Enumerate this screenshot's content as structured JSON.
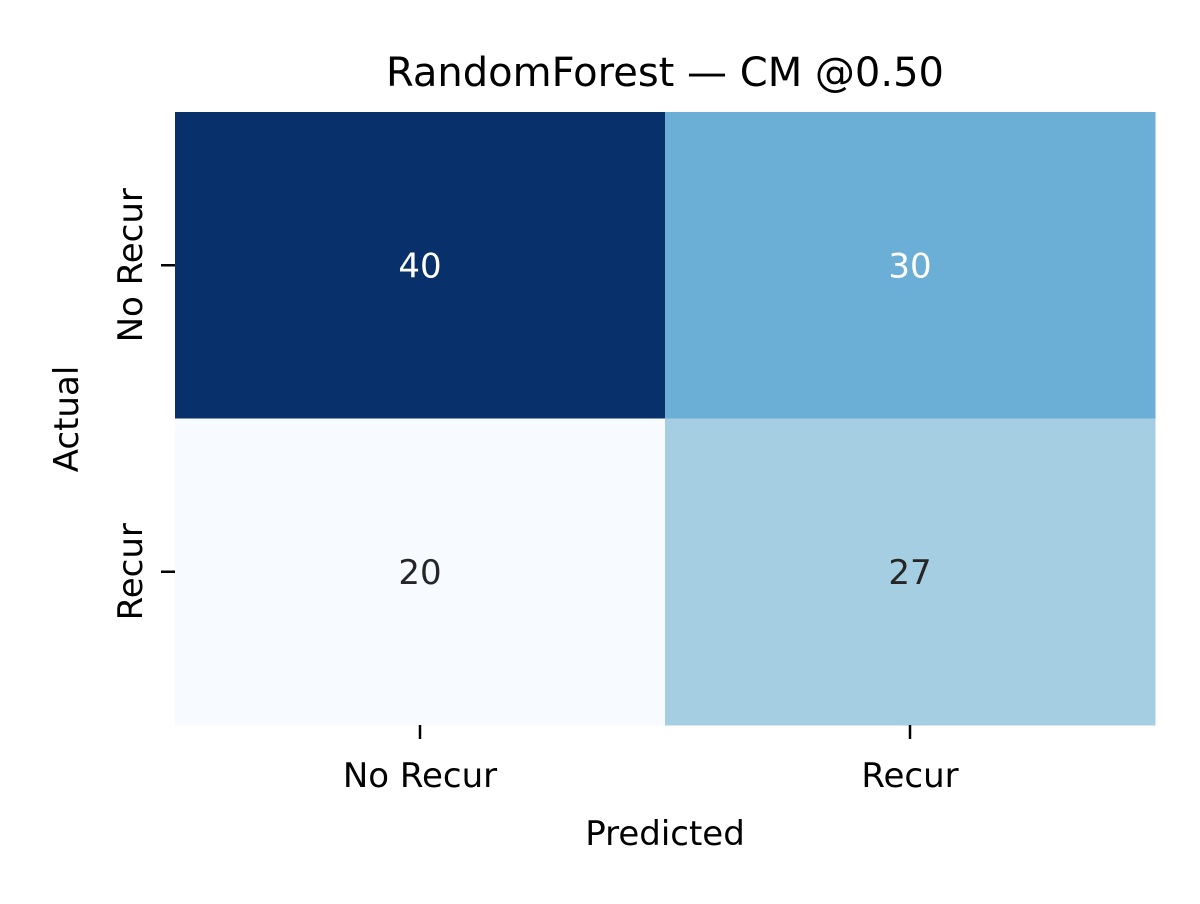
{
  "chart_data": {
    "type": "heatmap",
    "title": "RandomForest — CM @0.50",
    "xlabel": "Predicted",
    "ylabel": "Actual",
    "x_categories": [
      "No Recur",
      "Recur"
    ],
    "y_categories": [
      "No Recur",
      "Recur"
    ],
    "values": [
      [
        40,
        30
      ],
      [
        20,
        27
      ]
    ],
    "colormap": "Blues",
    "value_range": [
      20,
      40
    ],
    "colorbar": false
  },
  "colors": {
    "cell_colors": [
      [
        "#08306b",
        "#6baed6"
      ],
      [
        "#f7fbff",
        "#a6cee3"
      ]
    ],
    "annot_light": "#ffffff",
    "annot_dark": "#262626",
    "text": "#000000",
    "tick": "#000000"
  }
}
